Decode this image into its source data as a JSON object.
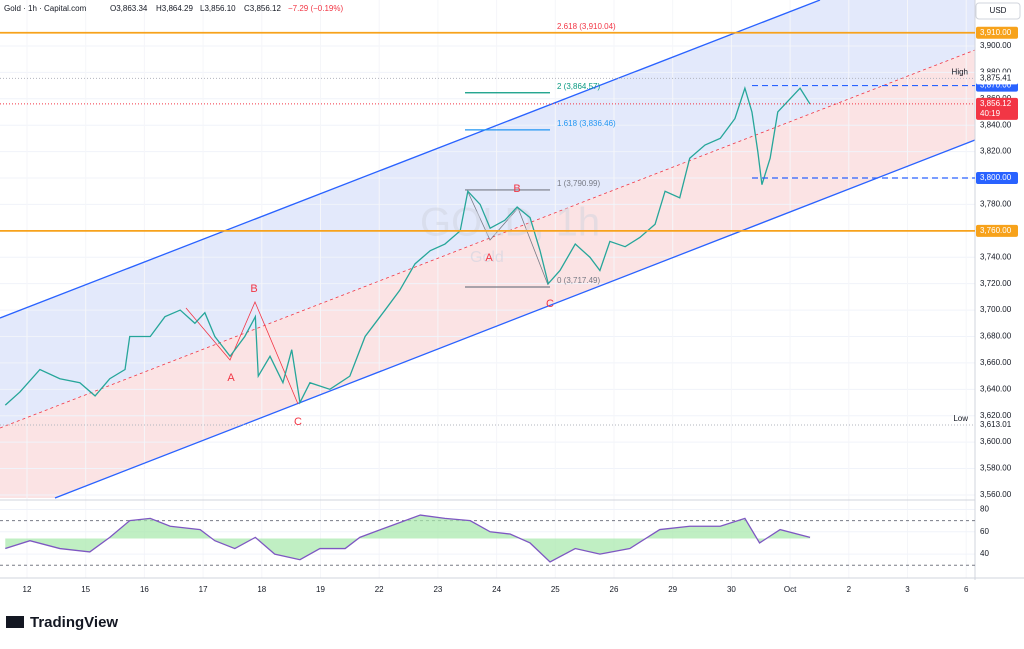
{
  "header": {
    "symbol": "Gold · 1h · Capital.com",
    "ohlc": [
      "O3,863.34",
      "H3,864.29",
      "L3,856.10",
      "C3,856.12",
      "−7.29 (−0.19%)"
    ]
  },
  "currency": "USD",
  "brand": "TradingView",
  "watermark": "GOLD, 1h",
  "watermark_sub": "Gold",
  "annotations": [
    "A",
    "B",
    "C",
    "A",
    "B",
    "C"
  ],
  "chart_data": [
    {
      "type": "line",
      "color": "#26a69a",
      "x": [
        -0.37,
        -0.12,
        0.22,
        0.56,
        0.9,
        1.16,
        1.41,
        1.67,
        1.75,
        2.1,
        2.35,
        2.61,
        2.86,
        3.03,
        3.2,
        3.46,
        3.71,
        3.89,
        3.94,
        4.14,
        4.36,
        4.51,
        4.65,
        4.82,
        5.16,
        5.5,
        5.76,
        6.1,
        6.35,
        6.61,
        6.87,
        7.12,
        7.38,
        7.51,
        7.72,
        7.89,
        8.14,
        8.35,
        8.57,
        8.74,
        8.88,
        9.08,
        9.34,
        9.59,
        9.76,
        9.93,
        10.19,
        10.44,
        10.7,
        10.87,
        11.12,
        11.29,
        11.55,
        11.81,
        12.06,
        12.23,
        12.35,
        12.45,
        12.52,
        12.66,
        12.79,
        13.0,
        13.17,
        13.34
      ],
      "values": [
        3628,
        3638,
        3655,
        3648,
        3645,
        3635,
        3648,
        3655,
        3680,
        3680,
        3695,
        3700,
        3690,
        3698,
        3680,
        3665,
        3680,
        3695,
        3650,
        3665,
        3645,
        3670,
        3630,
        3645,
        3640,
        3650,
        3680,
        3700,
        3715,
        3735,
        3745,
        3750,
        3760,
        3790,
        3780,
        3762,
        3768,
        3778,
        3770,
        3745,
        3720,
        3730,
        3750,
        3740,
        3730,
        3752,
        3748,
        3755,
        3765,
        3790,
        3785,
        3815,
        3825,
        3830,
        3845,
        3868,
        3850,
        3820,
        3795,
        3815,
        3850,
        3860,
        3868,
        3856
      ],
      "xlim": [
        -0.46,
        16.15
      ],
      "ylim": [
        3557.7,
        3934.8
      ],
      "xticks": [
        {
          "value": 0,
          "label": "12"
        },
        {
          "value": 1,
          "label": "15"
        },
        {
          "value": 2,
          "label": "16"
        },
        {
          "value": 3,
          "label": "17"
        },
        {
          "value": 4,
          "label": "18"
        },
        {
          "value": 5,
          "label": "19"
        },
        {
          "value": 6,
          "label": "22"
        },
        {
          "value": 7,
          "label": "23"
        },
        {
          "value": 8,
          "label": "24"
        },
        {
          "value": 9,
          "label": "25"
        },
        {
          "value": 10,
          "label": "26"
        },
        {
          "value": 11,
          "label": "29"
        },
        {
          "value": 12,
          "label": "30"
        },
        {
          "value": 13,
          "label": "Oct"
        },
        {
          "value": 14,
          "label": "2"
        },
        {
          "value": 15,
          "label": "3"
        },
        {
          "value": 16,
          "label": "6"
        }
      ],
      "yticks": [
        {
          "value": 3560,
          "label": "3,560.00"
        },
        {
          "value": 3580,
          "label": "3,580.00"
        },
        {
          "value": 3600,
          "label": "3,600.00"
        },
        {
          "value": 3620,
          "label": "3,620.00"
        },
        {
          "value": 3640,
          "label": "3,640.00"
        },
        {
          "value": 3660,
          "label": "3,660.00"
        },
        {
          "value": 3680,
          "label": "3,680.00"
        },
        {
          "value": 3700,
          "label": "3,700.00"
        },
        {
          "value": 3720,
          "label": "3,720.00"
        },
        {
          "value": 3740,
          "label": "3,740.00"
        },
        {
          "value": 3760,
          "label": "3,760.00"
        },
        {
          "value": 3780,
          "label": "3,780.00"
        },
        {
          "value": 3800,
          "label": "3,800.00"
        },
        {
          "value": 3820,
          "label": "3,820.00"
        },
        {
          "value": 3840,
          "label": "3,840.00"
        },
        {
          "value": 3860,
          "label": "3,860.00"
        },
        {
          "value": 3880,
          "label": "3,880.00"
        },
        {
          "value": 3900,
          "label": "3,900.00"
        }
      ],
      "levels": [
        {
          "value": 3910,
          "label": "3,910.00",
          "color": "#f7a21b"
        },
        {
          "value": 3760,
          "label": "3,760.00",
          "color": "#f7a21b"
        },
        {
          "value": 3870,
          "label": "3,870.00",
          "color": "#2962ff"
        },
        {
          "value": 3800,
          "label": "3,800.00",
          "color": "#2962ff"
        }
      ],
      "high": {
        "value": 3875.41,
        "label": "3,875.41",
        "text": "High"
      },
      "low": {
        "value": 3613.01,
        "label": "3,613.01",
        "text": "Low"
      },
      "last": {
        "value": 3856.12,
        "label": "3,856.12",
        "countdown": "40:19"
      },
      "fib": [
        {
          "value": 3910.04,
          "label": "2.618 (3,910.04)",
          "color": "#f23645"
        },
        {
          "value": 3864.57,
          "label": "2 (3,864.57)",
          "color": "#089981"
        },
        {
          "value": 3836.46,
          "label": "1.618 (3,836.46)",
          "color": "#2196f3"
        },
        {
          "value": 3790.99,
          "label": "1 (3,790.99)",
          "color": "#787b86"
        },
        {
          "value": 3717.49,
          "label": "0 (3,717.49)",
          "color": "#787b86"
        }
      ]
    },
    {
      "type": "line",
      "color": "#7e57c2",
      "x": [
        -0.37,
        0.05,
        0.56,
        1.07,
        1.41,
        1.75,
        2.1,
        2.44,
        2.95,
        3.2,
        3.54,
        3.89,
        4.22,
        4.65,
        4.99,
        5.42,
        5.67,
        6.18,
        6.7,
        7.12,
        7.55,
        7.89,
        8.23,
        8.57,
        8.91,
        9.34,
        9.76,
        10.27,
        10.78,
        11.29,
        11.81,
        12.23,
        12.48,
        12.83,
        13.34
      ],
      "values": [
        45,
        52,
        45,
        42,
        55,
        70,
        72,
        65,
        62,
        52,
        45,
        55,
        40,
        35,
        45,
        45,
        55,
        65,
        75,
        72,
        70,
        60,
        58,
        50,
        33,
        45,
        40,
        45,
        62,
        65,
        65,
        72,
        50,
        62,
        55
      ],
      "xlim": [
        -0.46,
        16.15
      ],
      "ylim": [
        24,
        84
      ],
      "yticks": [
        40,
        60,
        80
      ],
      "bands": [
        30,
        70
      ]
    }
  ]
}
